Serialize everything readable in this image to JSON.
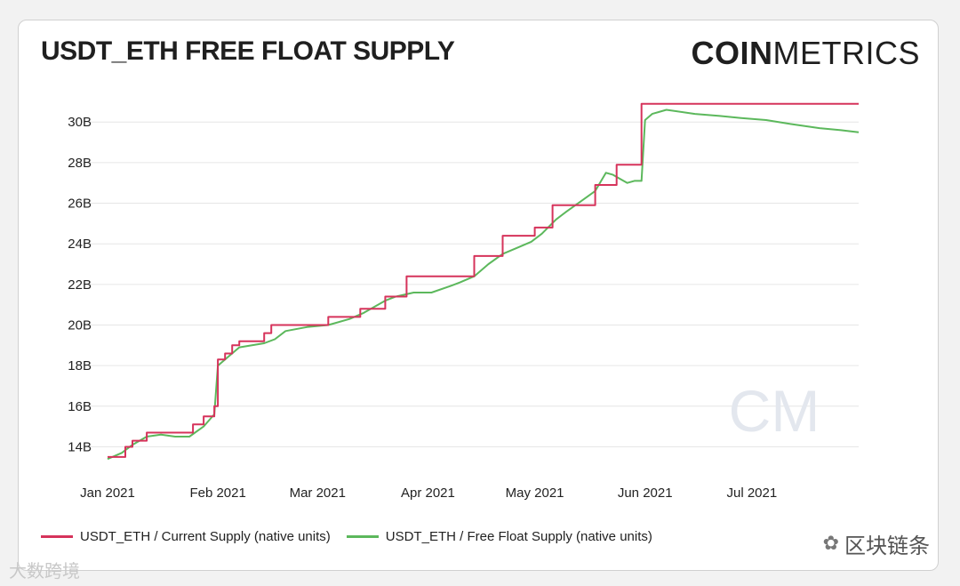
{
  "brand": {
    "bold": "COIN",
    "light": "METRICS",
    "watermark": "CM"
  },
  "colors": {
    "current": "#d6335b",
    "free_float": "#5cb85c",
    "grid": "#e6e6e6",
    "text": "#222222"
  },
  "chart_data": {
    "type": "line",
    "title": "USDT_ETH FREE FLOAT SUPPLY",
    "xlabel": "",
    "ylabel": "",
    "x_ticks": [
      "Jan 2021",
      "Feb 2021",
      "Mar 2021",
      "Apr 2021",
      "May 2021",
      "Jun 2021",
      "Jul 2021"
    ],
    "y_ticks": [
      "14B",
      "16B",
      "18B",
      "20B",
      "22B",
      "24B",
      "26B",
      "28B",
      "30B"
    ],
    "ylim": [
      13.1,
      31.5
    ],
    "xlim": [
      "2021-01-01",
      "2021-07-31"
    ],
    "grid": true,
    "legend_position": "bottom-left",
    "series": [
      {
        "name": "USDT_ETH / Current Supply (native units)",
        "step": true,
        "x": [
          "2021-01-01",
          "2021-01-06",
          "2021-01-08",
          "2021-01-12",
          "2021-01-25",
          "2021-01-28",
          "2021-01-31",
          "2021-02-01",
          "2021-02-03",
          "2021-02-05",
          "2021-02-07",
          "2021-02-14",
          "2021-02-16",
          "2021-02-26",
          "2021-03-04",
          "2021-03-13",
          "2021-03-20",
          "2021-03-23",
          "2021-03-26",
          "2021-04-07",
          "2021-04-14",
          "2021-04-22",
          "2021-04-28",
          "2021-05-01",
          "2021-05-06",
          "2021-05-18",
          "2021-05-24",
          "2021-05-31",
          "2021-07-31"
        ],
        "y": [
          13.5,
          14.0,
          14.3,
          14.7,
          15.1,
          15.5,
          16.0,
          18.3,
          18.6,
          19.0,
          19.2,
          19.6,
          20.0,
          20.0,
          20.4,
          20.8,
          21.4,
          21.4,
          22.4,
          22.4,
          23.4,
          24.4,
          24.4,
          24.8,
          25.9,
          26.9,
          27.9,
          30.9,
          30.9
        ]
      },
      {
        "name": "USDT_ETH / Free Float Supply (native units)",
        "step": false,
        "x": [
          "2021-01-01",
          "2021-01-05",
          "2021-01-08",
          "2021-01-12",
          "2021-01-16",
          "2021-01-20",
          "2021-01-24",
          "2021-01-28",
          "2021-01-31",
          "2021-02-01",
          "2021-02-03",
          "2021-02-07",
          "2021-02-14",
          "2021-02-17",
          "2021-02-20",
          "2021-02-26",
          "2021-03-04",
          "2021-03-10",
          "2021-03-14",
          "2021-03-20",
          "2021-03-23",
          "2021-03-28",
          "2021-04-02",
          "2021-04-07",
          "2021-04-10",
          "2021-04-14",
          "2021-04-18",
          "2021-04-22",
          "2021-04-26",
          "2021-04-30",
          "2021-05-03",
          "2021-05-07",
          "2021-05-10",
          "2021-05-14",
          "2021-05-18",
          "2021-05-21",
          "2021-05-23",
          "2021-05-25",
          "2021-05-27",
          "2021-05-29",
          "2021-05-31",
          "2021-06-01",
          "2021-06-03",
          "2021-06-07",
          "2021-06-15",
          "2021-06-22",
          "2021-06-28",
          "2021-07-05",
          "2021-07-12",
          "2021-07-20",
          "2021-07-26",
          "2021-07-31"
        ],
        "y": [
          13.4,
          13.7,
          14.1,
          14.5,
          14.6,
          14.5,
          14.5,
          15.0,
          15.6,
          18.0,
          18.3,
          18.9,
          19.1,
          19.3,
          19.7,
          19.9,
          20.0,
          20.3,
          20.6,
          21.2,
          21.4,
          21.6,
          21.6,
          21.9,
          22.1,
          22.4,
          23.0,
          23.5,
          23.8,
          24.1,
          24.5,
          25.2,
          25.6,
          26.1,
          26.6,
          27.5,
          27.4,
          27.2,
          27.0,
          27.1,
          27.1,
          30.1,
          30.4,
          30.6,
          30.4,
          30.3,
          30.2,
          30.1,
          29.9,
          29.7,
          29.6,
          29.5
        ]
      }
    ]
  },
  "overlay": {
    "left_text": "大数跨境",
    "right_text": "区块链条"
  }
}
